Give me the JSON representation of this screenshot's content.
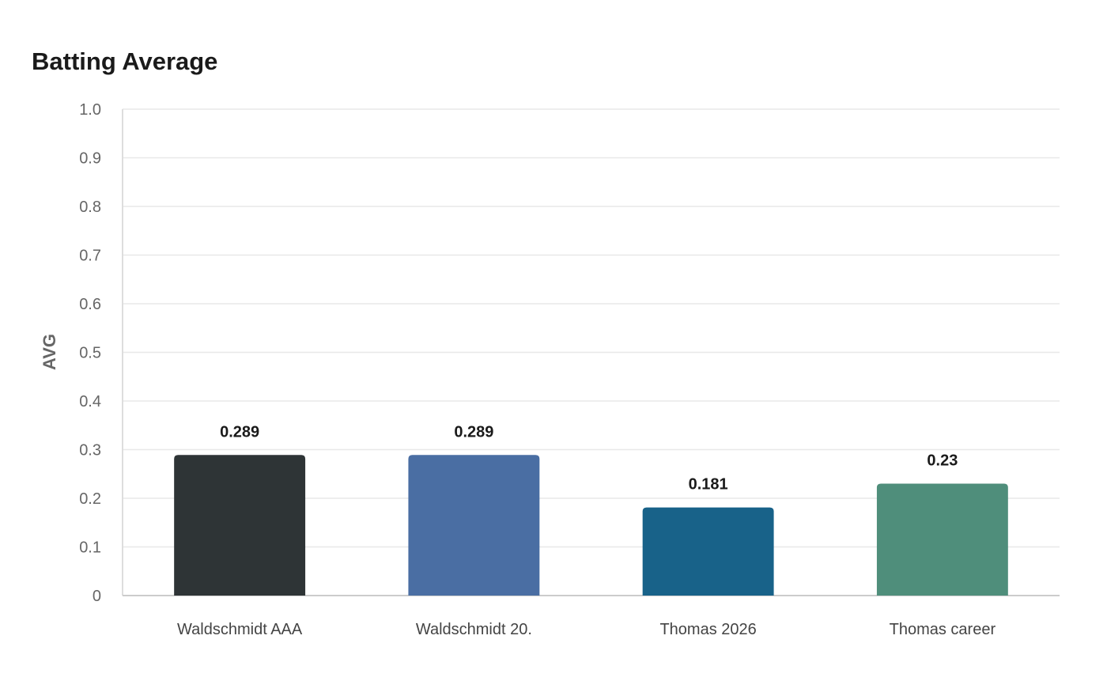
{
  "chart_data": {
    "type": "bar",
    "title": "Batting Average",
    "xlabel": "",
    "ylabel": "AVG",
    "ylim": [
      0,
      1.0
    ],
    "yticks": [
      "0",
      "0.1",
      "0.2",
      "0.3",
      "0.4",
      "0.5",
      "0.6",
      "0.7",
      "0.8",
      "0.9",
      "1.0"
    ],
    "grid": true,
    "legend": "none",
    "categories": [
      "Waldschmidt AAA",
      "Waldschmidt 20.",
      "Thomas 2026",
      "Thomas career"
    ],
    "values": [
      0.289,
      0.289,
      0.181,
      0.23
    ],
    "value_labels": [
      "0.289",
      "0.289",
      "0.181",
      "0.23"
    ],
    "colors": [
      "#2e3436",
      "#4a6ea3",
      "#186289",
      "#4f8e7b"
    ]
  }
}
